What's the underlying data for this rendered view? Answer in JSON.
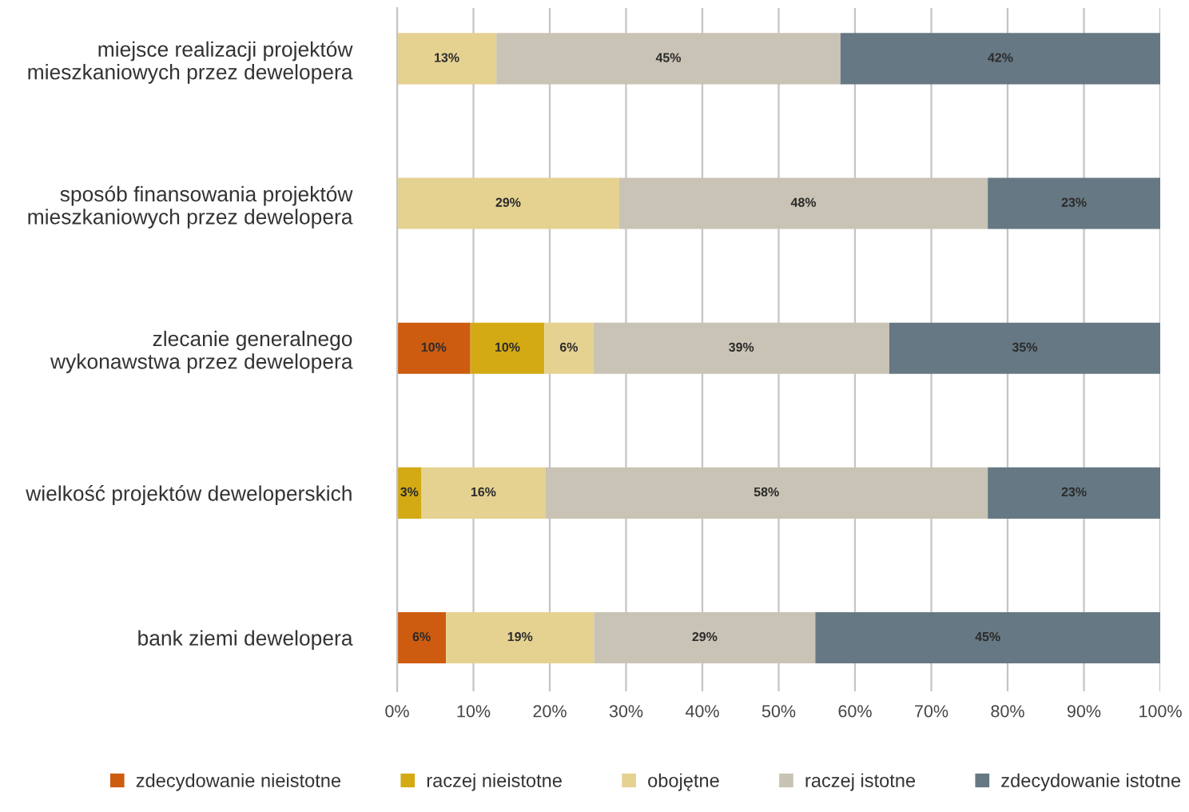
{
  "chart_data": {
    "type": "bar",
    "orientation": "horizontal",
    "stacked": true,
    "categories": [
      "miejsce realizacji projektów\nmieszkaniowych przez dewelopera",
      "sposób finansowania projektów\nmieszkaniowych przez dewelopera",
      "zlecanie generalnego\nwykonawstwa przez dewelopera",
      "wielkość projektów deweloperskich",
      "bank ziemi dewelopera"
    ],
    "series": [
      {
        "name": "zdecydowanie nieistotne",
        "color": "#cd5c10",
        "values": [
          null,
          null,
          9.6,
          null,
          6.4
        ],
        "value_labels": [
          null,
          null,
          "10%",
          null,
          "6%"
        ]
      },
      {
        "name": "raczej nieistotne",
        "color": "#d4aa14",
        "values": [
          null,
          null,
          9.7,
          3.2,
          null
        ],
        "value_labels": [
          null,
          null,
          "10%",
          "3%",
          null
        ]
      },
      {
        "name": "obojętne",
        "color": "#e5d291",
        "values": [
          13.0,
          29.1,
          6.4,
          16.2,
          19.4
        ],
        "value_labels": [
          "13%",
          "29%",
          "6%",
          "16%",
          "19%"
        ]
      },
      {
        "name": "raczej istotne",
        "color": "#c9c3b5",
        "values": [
          45.1,
          48.3,
          38.8,
          58.0,
          29.0
        ],
        "value_labels": [
          "45%",
          "48%",
          "39%",
          "58%",
          "29%"
        ]
      },
      {
        "name": "zdecydowanie istotne",
        "color": "#667883",
        "values": [
          41.9,
          22.6,
          35.5,
          22.6,
          45.2
        ],
        "value_labels": [
          "42%",
          "23%",
          "35%",
          "23%",
          "45%"
        ]
      }
    ],
    "xlim": [
      0,
      100
    ],
    "xticks": [
      {
        "value": 0,
        "label": "0%"
      },
      {
        "value": 10,
        "label": "10%"
      },
      {
        "value": 20,
        "label": "20%"
      },
      {
        "value": 30,
        "label": "30%"
      },
      {
        "value": 40,
        "label": "40%"
      },
      {
        "value": 50,
        "label": "50%"
      },
      {
        "value": 60,
        "label": "60%"
      },
      {
        "value": 70,
        "label": "70%"
      },
      {
        "value": 80,
        "label": "80%"
      },
      {
        "value": 90,
        "label": "90%"
      },
      {
        "value": 100,
        "label": "100%"
      }
    ],
    "grid": "x",
    "legend": "bottom"
  }
}
